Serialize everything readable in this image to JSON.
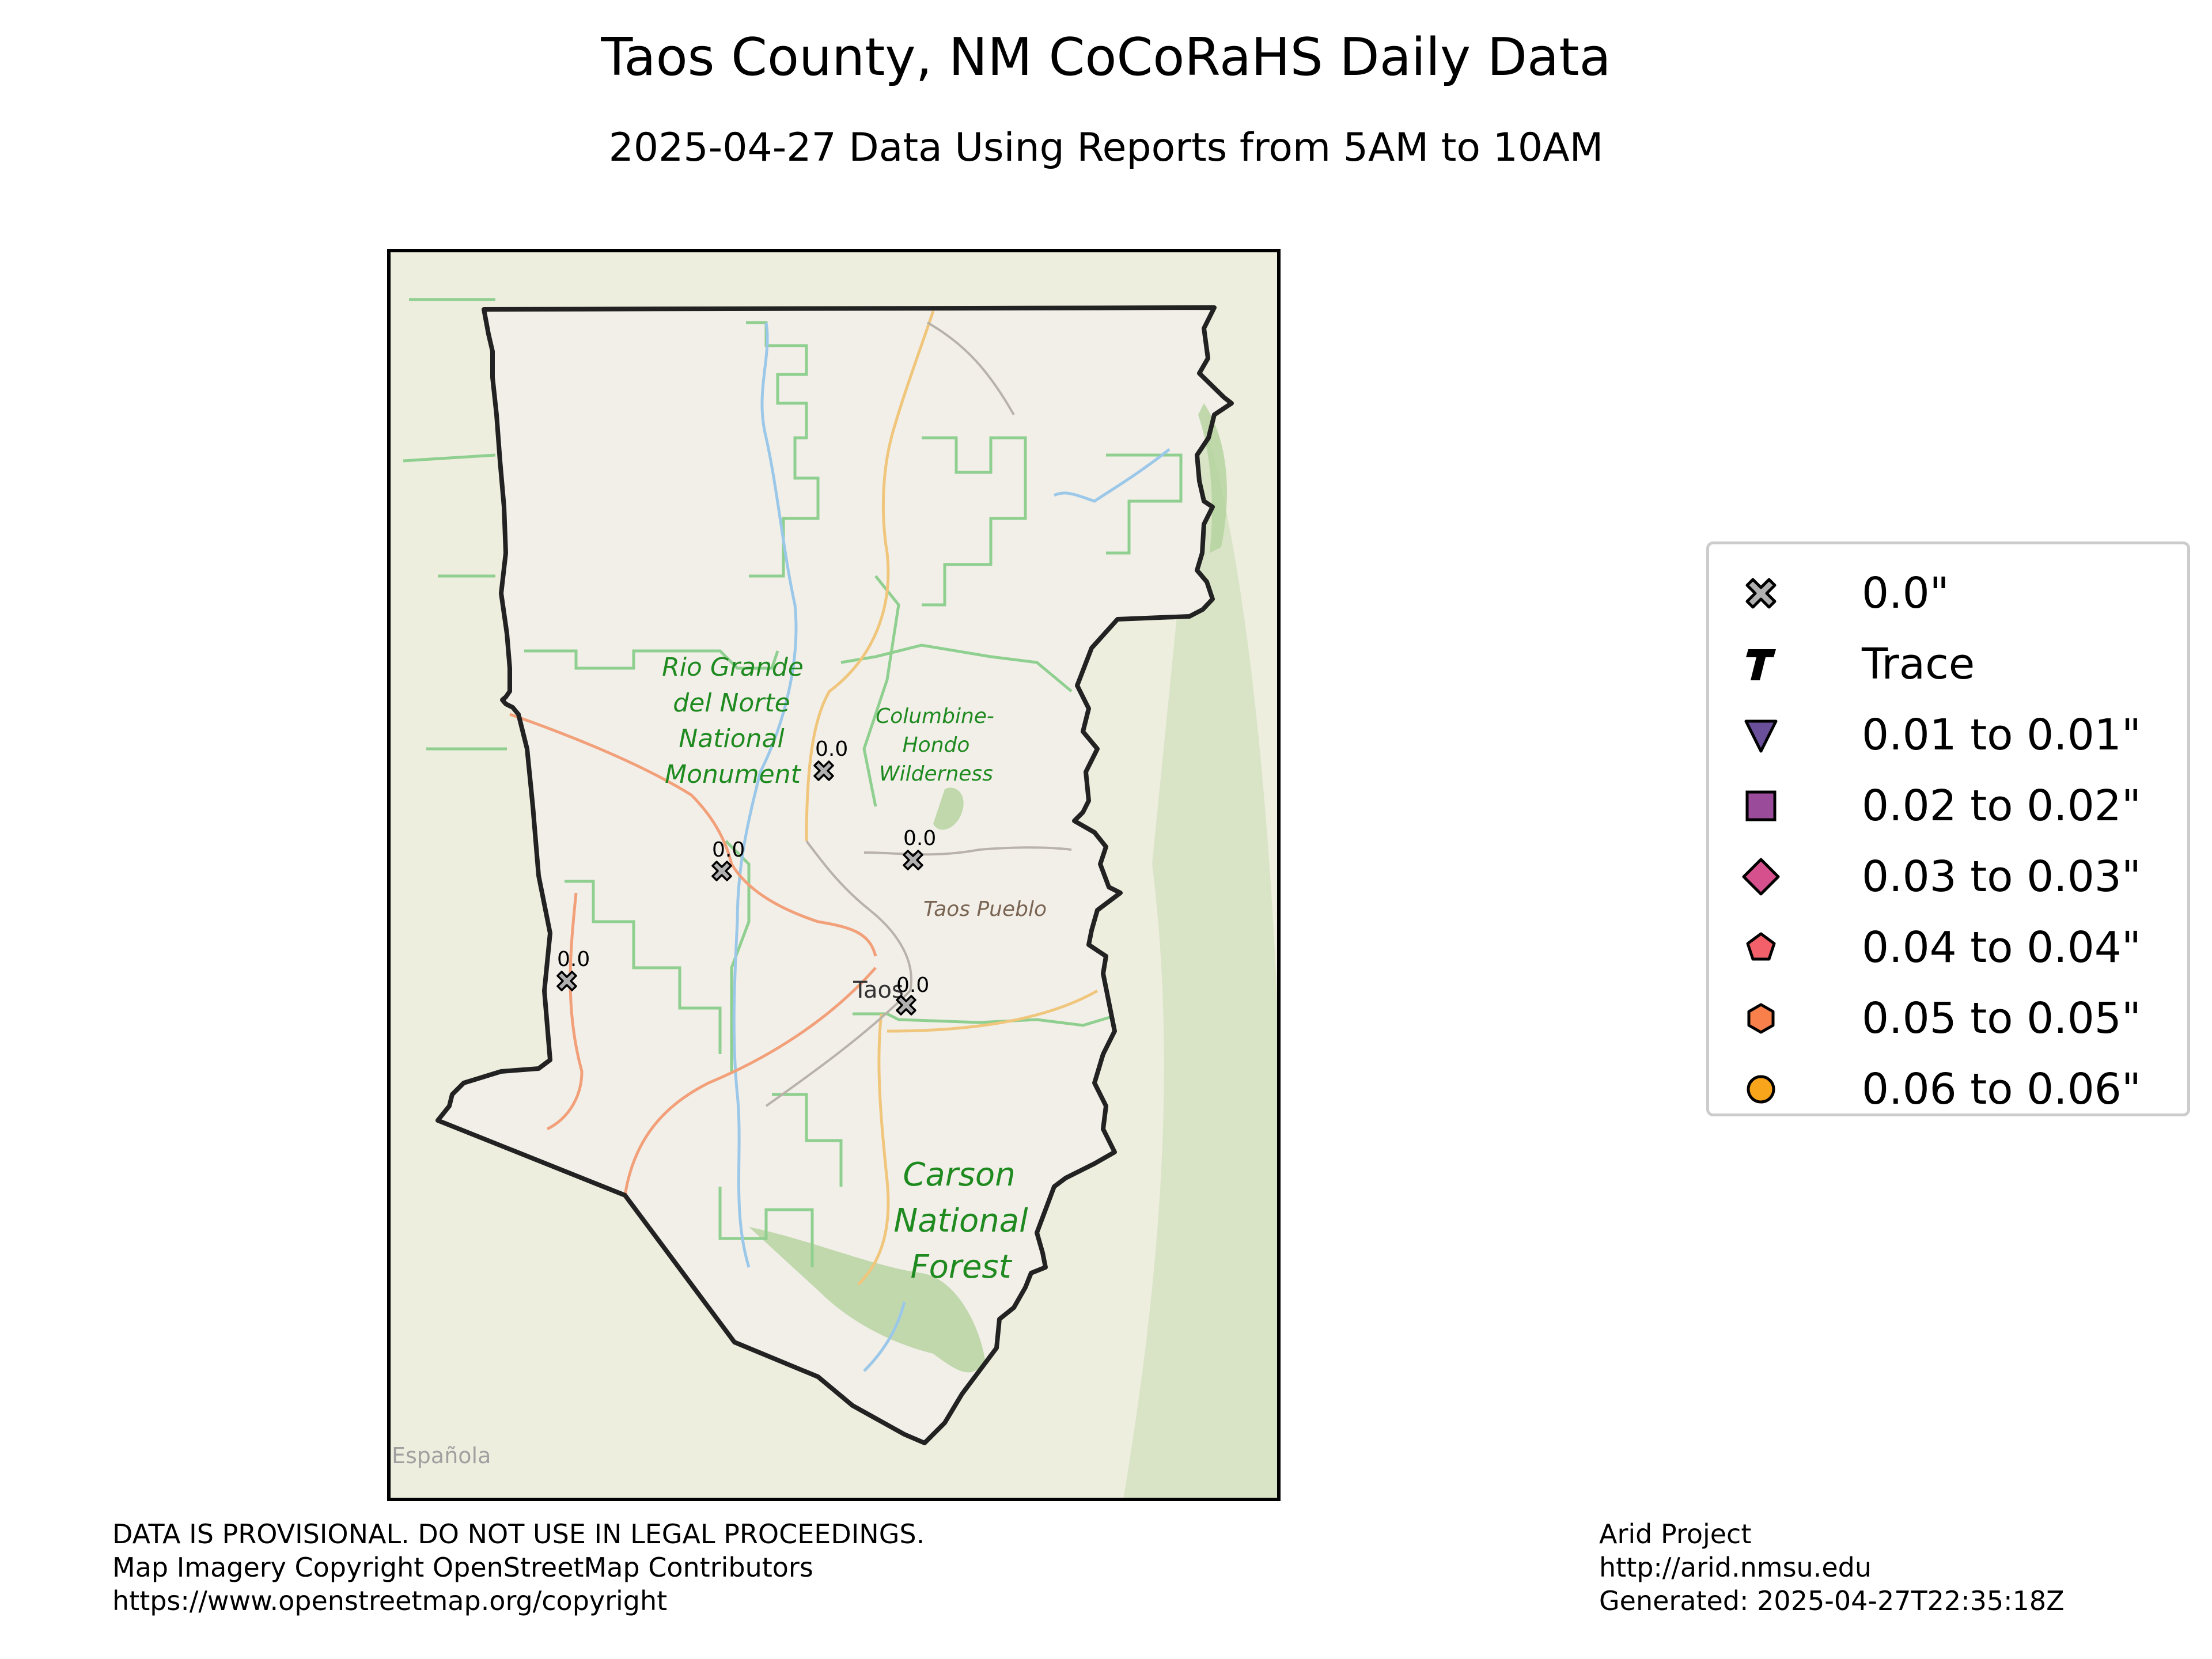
{
  "title": "Taos County, NM CoCoRaHS Daily Data",
  "subtitle": "2025-04-27 Data Using Reports from 5AM to 10AM",
  "map": {
    "place_labels": [
      "Rio Grande",
      "del Norte",
      "National",
      "Monument",
      "Columbine-",
      "Hondo",
      "Wilderness",
      "Taos Pueblo",
      "Taos",
      "Carson",
      "National",
      "Forest",
      "Española"
    ],
    "stations": [
      {
        "value_label": "0.0",
        "category": "0.0\""
      },
      {
        "value_label": "0.0",
        "category": "0.0\""
      },
      {
        "value_label": "0.0",
        "category": "0.0\""
      },
      {
        "value_label": "0.0",
        "category": "0.0\""
      },
      {
        "value_label": "0.0",
        "category": "0.0\""
      }
    ],
    "colors": {
      "background": "#eeeedf",
      "county_fill": "#f2efe9",
      "county_border": "#222222",
      "forest_fill": "#b3d29c",
      "boundary_line": "#8fcf8f",
      "river": "#9bc8e8",
      "road_primary": "#f2a07a",
      "road_secondary": "#f0c67c",
      "label_green": "#1f8a1f",
      "label_brown": "#7a6452"
    }
  },
  "legend": {
    "items": [
      {
        "label": "0.0\"",
        "icon": "x-mark",
        "color": "#b0b0b0"
      },
      {
        "label": "Trace",
        "icon": "letter-t",
        "color": "#000000"
      },
      {
        "label": "0.01 to 0.01\"",
        "icon": "triangle-down",
        "color": "#6a4f9b"
      },
      {
        "label": "0.02 to 0.02\"",
        "icon": "square",
        "color": "#9a4b9a"
      },
      {
        "label": "0.03 to 0.03\"",
        "icon": "diamond",
        "color": "#d5508c"
      },
      {
        "label": "0.04 to 0.04\"",
        "icon": "pentagon",
        "color": "#f4606a"
      },
      {
        "label": "0.05 to 0.05\"",
        "icon": "hexagon",
        "color": "#f9804a"
      },
      {
        "label": "0.06 to 0.06\"",
        "icon": "circle",
        "color": "#f8a51c"
      }
    ]
  },
  "footer": {
    "left": [
      "DATA IS PROVISIONAL. DO NOT USE IN LEGAL PROCEEDINGS.",
      "Map Imagery Copyright OpenStreetMap Contributors",
      "https://www.openstreetmap.org/copyright"
    ],
    "right": [
      "Arid Project",
      "http://arid.nmsu.edu",
      "Generated: 2025-04-27T22:35:18Z"
    ]
  }
}
